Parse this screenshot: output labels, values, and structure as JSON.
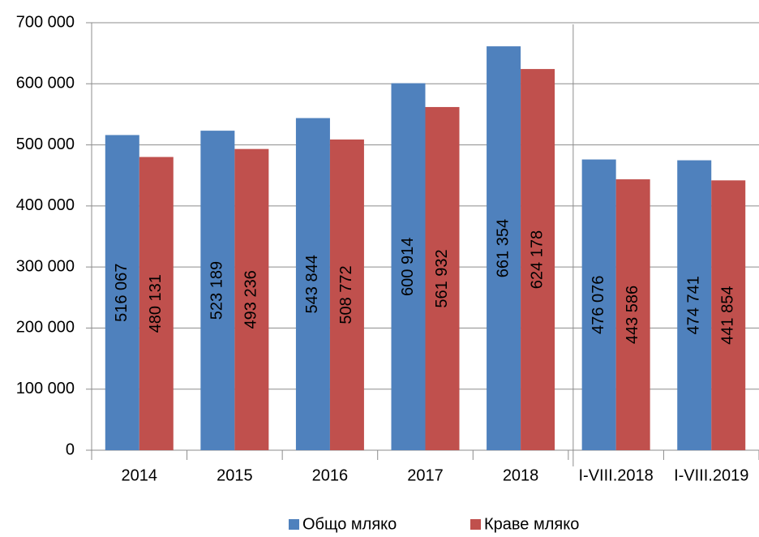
{
  "chart_data": {
    "type": "bar",
    "categories": [
      "2014",
      "2015",
      "2016",
      "2017",
      "2018",
      "I-VIII.2018",
      "I-VIII.2019"
    ],
    "series": [
      {
        "name": "Общо мляко",
        "color": "#4f81bd",
        "values": [
          516067,
          523189,
          543844,
          600914,
          661354,
          476076,
          474741
        ],
        "value_labels": [
          "516 067",
          "523 189",
          "543 844",
          "600 914",
          "661 354",
          "476 076",
          "474 741"
        ]
      },
      {
        "name": "Краве мляко",
        "color": "#c0504d",
        "values": [
          480131,
          493236,
          508772,
          561932,
          624178,
          443586,
          441854
        ],
        "value_labels": [
          "480 131",
          "493 236",
          "508 772",
          "561 932",
          "624 178",
          "443 586",
          "441 854"
        ]
      }
    ],
    "ylim": [
      0,
      700000
    ],
    "yticks": [
      0,
      {
        "value": 100000,
        "label": "100 000"
      },
      {
        "value": 200000,
        "label": "200 000"
      },
      {
        "value": 300000,
        "label": "300 000"
      },
      {
        "value": 400000,
        "label": "400 000"
      },
      {
        "value": 500000,
        "label": "500 000"
      },
      {
        "value": 600000,
        "label": "600 000"
      },
      {
        "value": 700000,
        "label": "700 000"
      }
    ],
    "grid": true,
    "legend": "bottom"
  }
}
